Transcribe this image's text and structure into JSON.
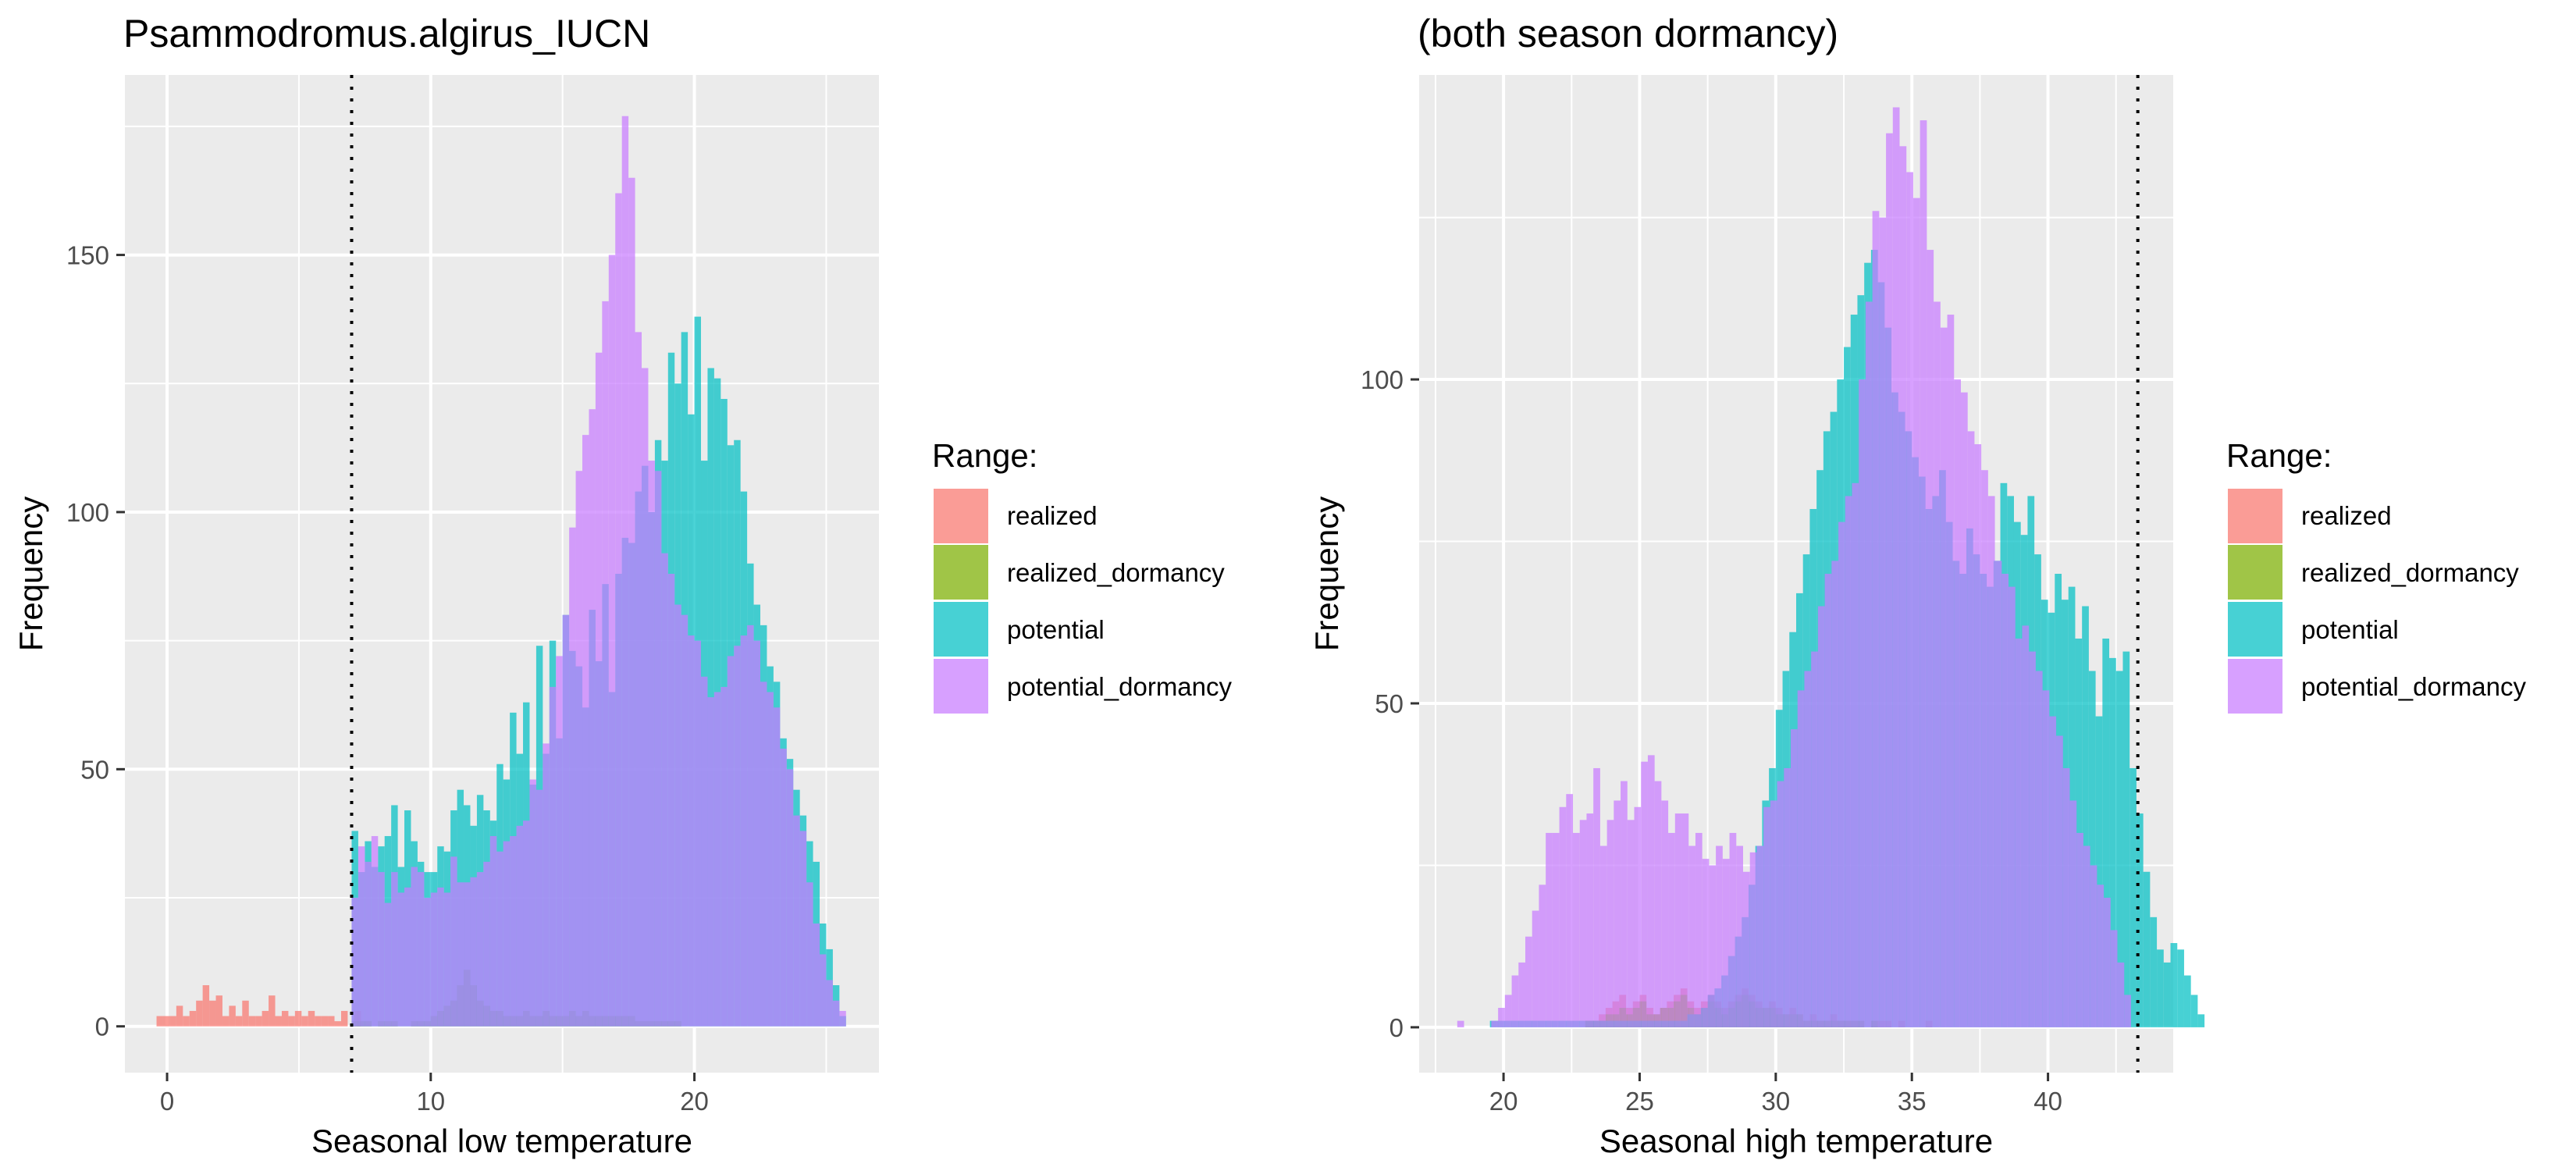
{
  "legend_title": "Range:",
  "colors": {
    "panel_bg": "#EBEBEB",
    "grid": "#FFFFFF",
    "realized": "#F8766D",
    "realized_dormancy": "#7CAE00",
    "potential": "#00BFC4",
    "potential_dormancy": "#C77CFF"
  },
  "chart_data": [
    {
      "type": "histogram",
      "title": "Psammodromus.algirus_IUCN",
      "xlabel": "Seasonal low temperature",
      "ylabel": "Frequency",
      "xlim": [
        -1.6,
        27
      ],
      "ylim": [
        -9,
        185
      ],
      "xticks": [
        0,
        10,
        20
      ],
      "yticks": [
        0,
        50,
        100,
        150
      ],
      "threshold_x": 7.0,
      "bin_width": 0.25,
      "legend_position": "right",
      "series": [
        {
          "name": "realized",
          "x_start": -0.4,
          "values": [
            2,
            2,
            2,
            4,
            2,
            3,
            5,
            8,
            5,
            6,
            2,
            4,
            2,
            5,
            2,
            2,
            3,
            6,
            2,
            3,
            2,
            3,
            2,
            3,
            2,
            2,
            2,
            1,
            3,
            0,
            3
          ]
        },
        {
          "name": "realized_dormancy",
          "x_start": 7.0,
          "values": [
            1,
            1,
            1,
            0,
            1,
            1,
            1,
            0,
            0,
            1,
            1,
            1,
            2,
            3,
            4,
            5,
            8,
            11,
            8,
            5,
            4,
            3,
            3,
            2,
            2,
            2,
            3,
            2,
            2,
            3,
            2,
            2,
            2,
            3,
            2,
            3,
            2,
            2,
            2,
            2,
            2,
            2,
            2,
            1,
            1,
            1,
            1,
            1,
            1,
            1,
            0,
            0,
            0,
            0,
            0,
            0,
            0,
            0,
            0,
            0,
            0,
            0,
            0,
            0,
            0,
            0,
            0,
            0,
            0,
            0,
            0,
            0,
            0,
            0,
            0
          ]
        },
        {
          "name": "potential",
          "x_start": 7.0,
          "values": [
            38,
            30,
            36,
            31,
            35,
            37,
            43,
            31,
            42,
            36,
            32,
            30,
            30,
            35,
            34,
            42,
            46,
            43,
            39,
            45,
            42,
            40,
            51,
            48,
            61,
            53,
            63,
            47,
            74,
            53,
            75,
            56,
            80,
            73,
            70,
            62,
            81,
            71,
            86,
            65,
            88,
            95,
            94,
            104,
            109,
            100,
            114,
            110,
            131,
            125,
            135,
            119,
            138,
            110,
            128,
            126,
            122,
            113,
            114,
            104,
            90,
            82,
            78,
            70,
            67,
            56,
            52,
            46,
            41,
            36,
            32,
            20,
            15,
            8,
            2
          ]
        },
        {
          "name": "potential_dormancy",
          "x_start": 7.0,
          "values": [
            25,
            35,
            32,
            37,
            30,
            24,
            30,
            26,
            27,
            31,
            30,
            25,
            26,
            27,
            26,
            33,
            28,
            28,
            29,
            30,
            32,
            37,
            34,
            36,
            37,
            39,
            40,
            48,
            46,
            55,
            66,
            72,
            80,
            97,
            108,
            115,
            120,
            131,
            141,
            150,
            162,
            177,
            165,
            135,
            128,
            110,
            108,
            92,
            88,
            82,
            80,
            76,
            75,
            68,
            64,
            65,
            66,
            72,
            74,
            76,
            78,
            75,
            67,
            65,
            62,
            54,
            50,
            41,
            38,
            28,
            20,
            14,
            9,
            5,
            3
          ]
        }
      ]
    },
    {
      "type": "histogram",
      "title": "(both season dormancy)",
      "xlabel": "Seasonal high temperature",
      "ylabel": "Frequency",
      "xlim": [
        16.9,
        44.6
      ],
      "ylim": [
        -7,
        147
      ],
      "xticks": [
        20,
        25,
        30,
        35,
        40
      ],
      "yticks": [
        0,
        50,
        100
      ],
      "threshold_x": 43.3,
      "bin_width": 0.25,
      "legend_position": "right",
      "series": [
        {
          "name": "realized",
          "x_start": 23.0,
          "values": [
            1,
            1,
            2,
            3,
            4,
            5,
            3,
            4,
            5,
            3,
            2,
            3,
            4,
            5,
            6,
            4,
            3,
            4,
            5,
            4,
            3,
            4,
            5,
            6,
            5,
            4,
            3,
            4,
            3,
            2,
            3,
            2,
            1,
            2,
            1,
            1,
            2,
            1,
            1,
            1,
            1,
            0,
            1,
            1,
            1,
            0,
            1,
            0,
            0,
            0,
            1,
            0,
            0,
            0,
            0,
            0,
            0,
            0,
            0,
            0
          ]
        },
        {
          "name": "realized_dormancy",
          "x_start": 23.0,
          "values": [
            1,
            1,
            1,
            2,
            2,
            3,
            2,
            3,
            4,
            2,
            2,
            3,
            3,
            4,
            5,
            3,
            2,
            3,
            4,
            3,
            2,
            3,
            4,
            5,
            4,
            3,
            3,
            3,
            2,
            2,
            2,
            2,
            1,
            1,
            1,
            1,
            1,
            1,
            1,
            1,
            1,
            0,
            1,
            0,
            0,
            0,
            0,
            0,
            0,
            0,
            0,
            0,
            0,
            0,
            0,
            0,
            0,
            0,
            0,
            0
          ]
        },
        {
          "name": "potential",
          "x_start": 19.5,
          "values": [
            1,
            1,
            1,
            1,
            1,
            1,
            1,
            1,
            1,
            1,
            1,
            1,
            1,
            1,
            1,
            1,
            1,
            1,
            1,
            1,
            1,
            1,
            1,
            1,
            1,
            1,
            1,
            1,
            1,
            2,
            2,
            3,
            5,
            6,
            8,
            11,
            14,
            17,
            22,
            28,
            35,
            40,
            49,
            55,
            61,
            67,
            73,
            80,
            86,
            92,
            95,
            100,
            105,
            110,
            113,
            118,
            120,
            115,
            108,
            98,
            95,
            92,
            88,
            85,
            80,
            82,
            86,
            78,
            72,
            70,
            77,
            73,
            70,
            68,
            72,
            84,
            82,
            78,
            76,
            82,
            73,
            66,
            64,
            70,
            66,
            68,
            60,
            65,
            55,
            48,
            60,
            57,
            55,
            58,
            40,
            33,
            24,
            17,
            12,
            10,
            13,
            12,
            8,
            5,
            2
          ]
        },
        {
          "name": "potential_dormancy",
          "x_start": 18.3,
          "values": [
            1,
            0,
            0,
            0,
            0,
            1,
            3,
            5,
            8,
            10,
            14,
            18,
            22,
            30,
            30,
            34,
            36,
            30,
            32,
            33,
            40,
            28,
            32,
            35,
            38,
            32,
            34,
            41,
            42,
            38,
            35,
            30,
            33,
            33,
            28,
            30,
            26,
            25,
            28,
            26,
            30,
            28,
            24,
            27,
            28,
            34,
            35,
            38,
            40,
            46,
            52,
            55,
            58,
            65,
            70,
            72,
            78,
            82,
            84,
            100,
            112,
            126,
            125,
            138,
            142,
            136,
            132,
            128,
            140,
            120,
            112,
            108,
            110,
            100,
            98,
            92,
            90,
            86,
            82,
            72,
            70,
            68,
            60,
            62,
            58,
            55,
            52,
            48,
            45,
            40,
            35,
            30,
            28,
            25,
            22,
            20,
            15,
            10,
            5
          ]
        }
      ]
    }
  ]
}
